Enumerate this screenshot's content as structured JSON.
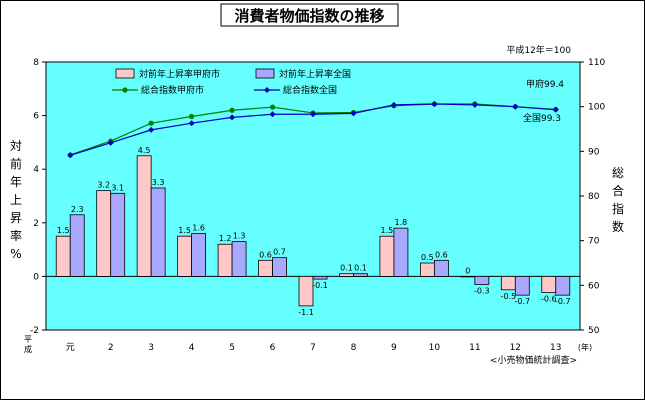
{
  "chart_data": {
    "type": "bar",
    "title": "消費者物価指数の推移",
    "base_note": "平成12年＝100",
    "source": "<小売物価統計調査>",
    "x_era_label": "平成",
    "x_unit": "(年)",
    "categories": [
      "元",
      "2",
      "3",
      "4",
      "5",
      "6",
      "7",
      "8",
      "9",
      "10",
      "11",
      "12",
      "13"
    ],
    "y_left": {
      "label": [
        "対",
        "前",
        "年",
        "上",
        "昇",
        "率",
        "%"
      ],
      "ylim": [
        -2,
        8
      ],
      "ticks": [
        -2,
        0,
        2,
        4,
        6,
        8
      ]
    },
    "y_right": {
      "label": [
        "総",
        "合",
        "指",
        "数"
      ],
      "ylim": [
        50,
        110
      ],
      "ticks": [
        50,
        60,
        70,
        80,
        90,
        100,
        110
      ]
    },
    "series": [
      {
        "name": "対前年上昇率甲府市",
        "kind": "bar",
        "axis": "left",
        "color": "#ffc8c8",
        "values": [
          1.5,
          3.2,
          4.5,
          1.5,
          1.2,
          0.6,
          -1.1,
          0.1,
          1.5,
          0.5,
          0.0,
          -0.5,
          -0.6
        ],
        "labels": [
          "1.5",
          "3.2",
          "4.5",
          "1.5",
          "1.2",
          "0.6",
          "-1.1",
          "0.1",
          "1.5",
          "0.5",
          "0",
          "-0.5",
          "-0.6"
        ]
      },
      {
        "name": "対前年上昇率全国",
        "kind": "bar",
        "axis": "left",
        "color": "#a8a8ff",
        "values": [
          2.3,
          3.1,
          3.3,
          1.6,
          1.3,
          0.7,
          -0.1,
          0.1,
          1.8,
          0.6,
          -0.3,
          -0.7,
          -0.7
        ],
        "labels": [
          "2.3",
          "3.1",
          "3.3",
          "1.6",
          "1.3",
          "0.7",
          "-0.1",
          "0.1",
          "1.8",
          "0.6",
          "-0.3",
          "-0.7",
          "-0.7"
        ]
      },
      {
        "name": "総合指数甲府市",
        "kind": "line",
        "axis": "right",
        "color": "#008000",
        "values": [
          89.2,
          92.3,
          96.3,
          97.8,
          99.2,
          99.9,
          98.6,
          98.7,
          100.2,
          100.6,
          100.6,
          100.0,
          99.4
        ]
      },
      {
        "name": "総合指数全国",
        "kind": "line",
        "axis": "right",
        "color": "#0000c0",
        "values": [
          89.1,
          91.9,
          94.8,
          96.3,
          97.6,
          98.3,
          98.3,
          98.5,
          100.4,
          100.6,
          100.4,
          100.0,
          99.3
        ]
      }
    ],
    "end_labels": [
      {
        "text": "甲府99.4",
        "series": 2
      },
      {
        "text": "全国99.3",
        "series": 3
      }
    ],
    "colors": {
      "plot_background": "#66ffff",
      "frame_background": "#ffffff"
    },
    "legend": "top-left"
  }
}
